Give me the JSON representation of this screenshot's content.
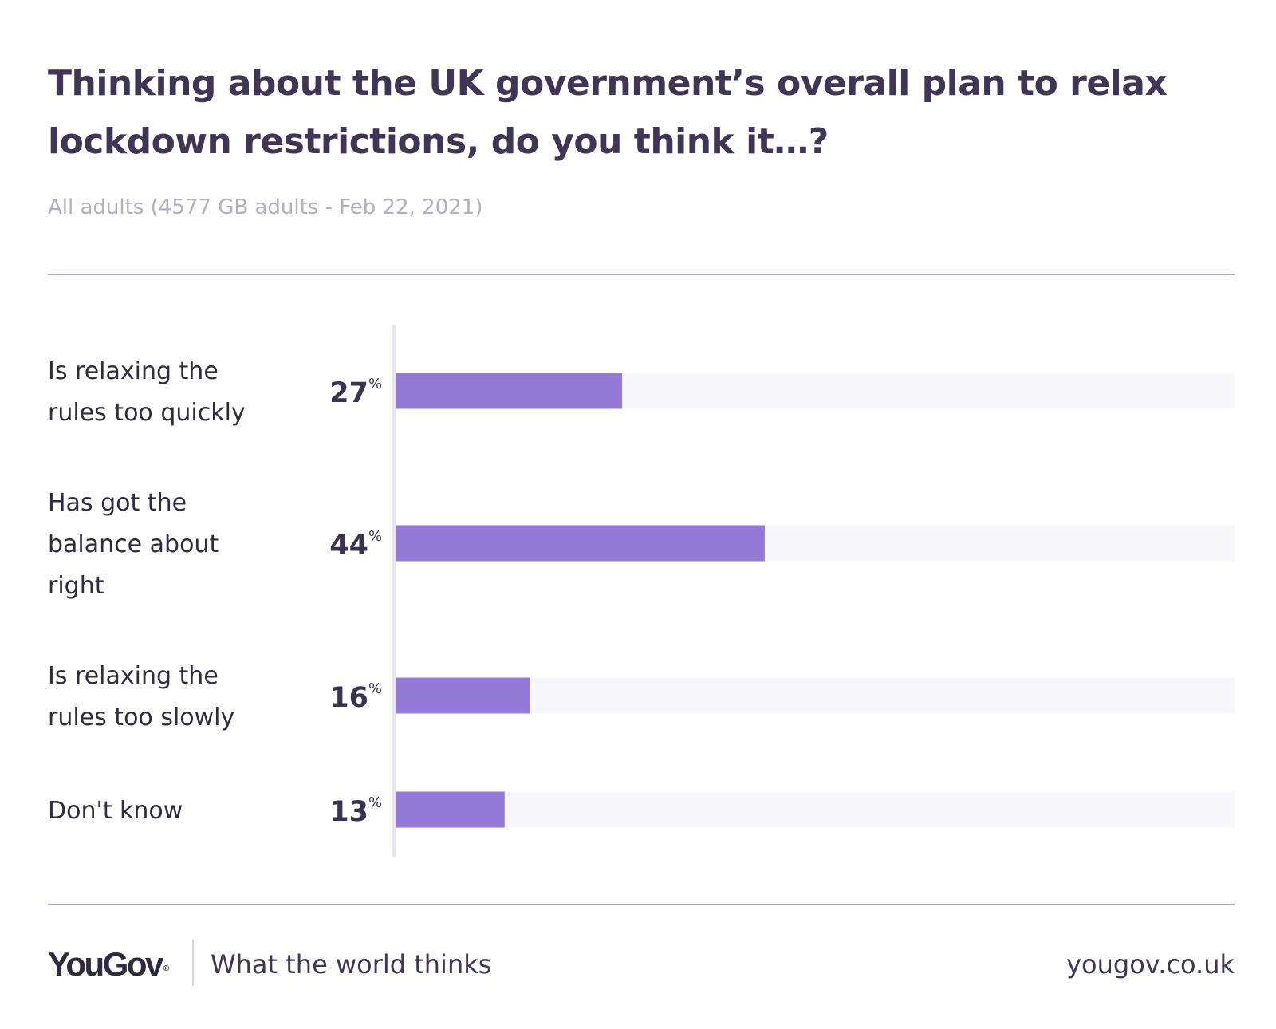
{
  "chart_data": {
    "type": "bar",
    "orientation": "horizontal",
    "title": "Thinking about the UK government’s overall plan to relax lockdown restrictions, do you think it…?",
    "subtitle": "All adults (4577 GB adults - Feb 22, 2021)",
    "categories": [
      [
        "Is relaxing the",
        "rules too quickly"
      ],
      [
        "Has got the",
        "balance about",
        "right"
      ],
      [
        "Is relaxing the",
        "rules too slowly"
      ],
      [
        "Don't know"
      ]
    ],
    "values": [
      27,
      44,
      16,
      13
    ],
    "value_labels": [
      "27",
      "44",
      "16",
      "13"
    ],
    "unit": "%",
    "xlim": [
      0,
      100
    ],
    "grid": false,
    "legend": "none",
    "colors": {
      "bar": "#9479d6",
      "track": "#f7f6fb",
      "axis": "#e8e5f1"
    }
  },
  "footer": {
    "brand": "YouGov",
    "brand_mark": "®",
    "tagline": "What the world thinks",
    "url": "yougov.co.uk"
  }
}
